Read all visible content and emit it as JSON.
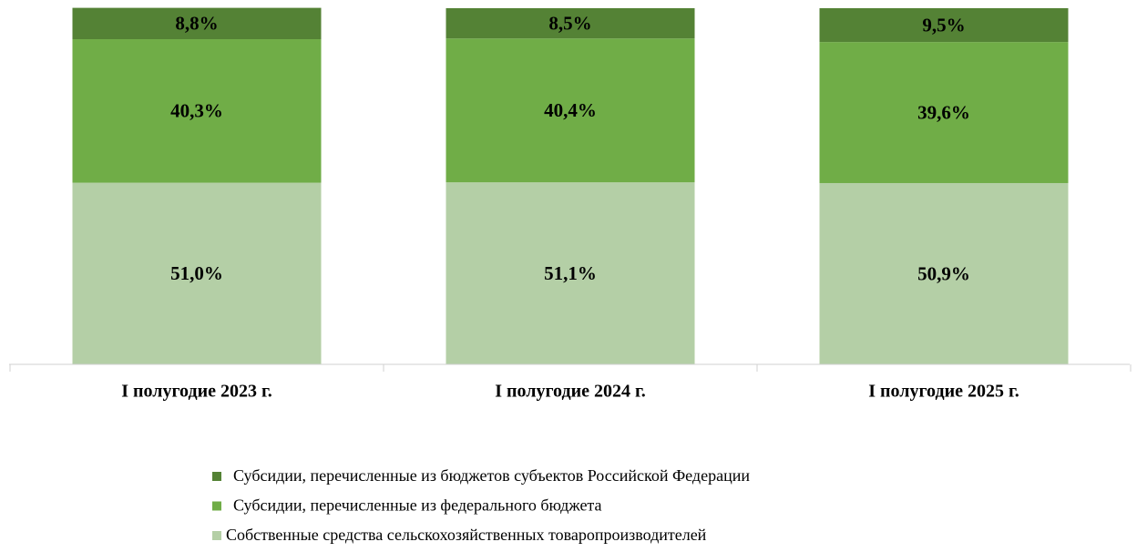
{
  "chart_data": {
    "type": "stacked_bar",
    "categories": [
      "I полугодие 2023 г.",
      "I полугодие 2024 г.",
      "I полугодие 2025 г."
    ],
    "series": [
      {
        "name": "Собственные средства сельскохозяйственных товаропроизводителей",
        "color": "#b4cfa6",
        "values": [
          51.0,
          51.1,
          50.9
        ],
        "value_labels": [
          "51,0%",
          "51,1%",
          "50,9%"
        ]
      },
      {
        "name": "Субсидии, перечисленные из федерального бюджета",
        "color": "#70ad47",
        "values": [
          40.3,
          40.4,
          39.6
        ],
        "value_labels": [
          "40,3%",
          "40,4%",
          "39,6%"
        ]
      },
      {
        "name": "Субсидии, перечисленные из бюджетов субъектов Российской Федерации",
        "color": "#548235",
        "values": [
          8.8,
          8.5,
          9.5
        ],
        "value_labels": [
          "8,8%",
          "8,5%",
          "9,5%"
        ]
      }
    ],
    "ylim": [
      0,
      100
    ]
  }
}
